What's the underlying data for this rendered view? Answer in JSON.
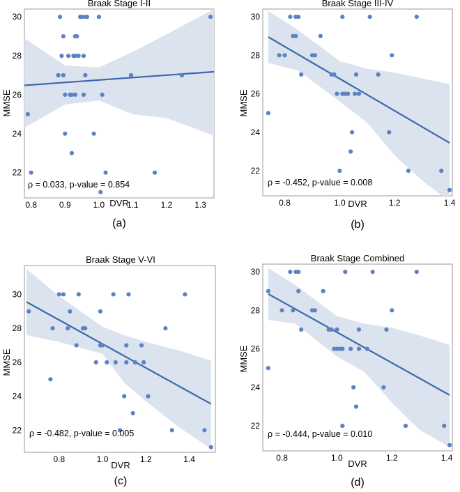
{
  "chart_data": [
    {
      "id": "a",
      "type": "scatter",
      "title": "Braak Stage I-II",
      "xlabel": "DVR",
      "ylabel": "MMSE",
      "xlim": [
        0.78,
        1.34
      ],
      "ylim": [
        20.7,
        30.4
      ],
      "xticks": [
        0.8,
        0.9,
        1.0,
        1.1,
        1.2,
        1.3
      ],
      "xtick_labels": [
        "0.8",
        "0.9",
        "1.0",
        "1.1",
        "1.2",
        "1.3"
      ],
      "yticks": [
        22,
        24,
        26,
        28,
        30
      ],
      "ytick_labels": [
        "22",
        "24",
        "26",
        "28",
        "30"
      ],
      "annotation": "ρ = 0.033, p-value = 0.854",
      "caption": "(a)",
      "points": [
        [
          0.79,
          25
        ],
        [
          0.8,
          22
        ],
        [
          0.88,
          27
        ],
        [
          0.885,
          30
        ],
        [
          0.89,
          28
        ],
        [
          0.895,
          29
        ],
        [
          0.895,
          27
        ],
        [
          0.9,
          26
        ],
        [
          0.9,
          24
        ],
        [
          0.91,
          28
        ],
        [
          0.915,
          26
        ],
        [
          0.92,
          26
        ],
        [
          0.92,
          23
        ],
        [
          0.925,
          28
        ],
        [
          0.93,
          29
        ],
        [
          0.93,
          28
        ],
        [
          0.93,
          26
        ],
        [
          0.935,
          29
        ],
        [
          0.94,
          28
        ],
        [
          0.945,
          30
        ],
        [
          0.95,
          30
        ],
        [
          0.955,
          28
        ],
        [
          0.955,
          26
        ],
        [
          0.96,
          27
        ],
        [
          0.96,
          30
        ],
        [
          0.965,
          30
        ],
        [
          0.985,
          24
        ],
        [
          1.0,
          30
        ],
        [
          1.005,
          21
        ],
        [
          1.01,
          26
        ],
        [
          1.02,
          22
        ],
        [
          1.095,
          27
        ],
        [
          1.165,
          22
        ],
        [
          1.245,
          27
        ],
        [
          1.33,
          30
        ]
      ],
      "fit_line": [
        [
          0.78,
          26.48
        ],
        [
          1.34,
          27.18
        ]
      ],
      "ci_upper": [
        [
          0.78,
          28.9
        ],
        [
          0.9,
          27.5
        ],
        [
          1.0,
          27.4
        ],
        [
          1.1,
          28.2
        ],
        [
          1.2,
          29.1
        ],
        [
          1.34,
          30.4
        ]
      ],
      "ci_lower": [
        [
          0.78,
          24.3
        ],
        [
          0.9,
          25.5
        ],
        [
          1.0,
          25.7
        ],
        [
          1.1,
          25.0
        ],
        [
          1.2,
          24.8
        ],
        [
          1.34,
          23.9
        ]
      ]
    },
    {
      "id": "b",
      "type": "scatter",
      "title": "Braak Stage III-IV",
      "xlabel": "DVR",
      "ylabel": "MMSE",
      "xlim": [
        0.72,
        1.41
      ],
      "ylim": [
        20.7,
        30.4
      ],
      "xticks": [
        0.8,
        1.0,
        1.2,
        1.4
      ],
      "xtick_labels": [
        "0.8",
        "1.0",
        "1.2",
        "1.4"
      ],
      "yticks": [
        22,
        24,
        26,
        28,
        30
      ],
      "ytick_labels": [
        "22",
        "24",
        "26",
        "28",
        "30"
      ],
      "annotation": "ρ = -0.452, p-value = 0.008",
      "caption": "(b)",
      "points": [
        [
          0.74,
          25
        ],
        [
          0.78,
          28
        ],
        [
          0.8,
          28
        ],
        [
          0.82,
          30
        ],
        [
          0.83,
          29
        ],
        [
          0.84,
          30
        ],
        [
          0.84,
          29
        ],
        [
          0.85,
          30
        ],
        [
          0.86,
          27
        ],
        [
          0.9,
          28
        ],
        [
          0.91,
          28
        ],
        [
          0.93,
          29
        ],
        [
          0.97,
          27
        ],
        [
          0.98,
          27
        ],
        [
          0.99,
          26
        ],
        [
          1.0,
          22
        ],
        [
          1.01,
          26
        ],
        [
          1.01,
          30
        ],
        [
          1.02,
          26
        ],
        [
          1.03,
          26
        ],
        [
          1.04,
          23
        ],
        [
          1.045,
          24
        ],
        [
          1.055,
          26
        ],
        [
          1.06,
          27
        ],
        [
          1.07,
          26
        ],
        [
          1.11,
          30
        ],
        [
          1.14,
          27
        ],
        [
          1.18,
          24
        ],
        [
          1.19,
          28
        ],
        [
          1.25,
          22
        ],
        [
          1.28,
          30
        ],
        [
          1.37,
          22
        ],
        [
          1.4,
          21
        ]
      ],
      "fit_line": [
        [
          0.74,
          28.95
        ],
        [
          1.4,
          23.45
        ]
      ],
      "ci_upper": [
        [
          0.74,
          30.3
        ],
        [
          0.85,
          29.3
        ],
        [
          1.0,
          27.7
        ],
        [
          1.1,
          27.3
        ],
        [
          1.2,
          27.1
        ],
        [
          1.3,
          26.8
        ],
        [
          1.4,
          26.5
        ]
      ],
      "ci_lower": [
        [
          0.74,
          27.6
        ],
        [
          0.85,
          27.2
        ],
        [
          1.0,
          25.6
        ],
        [
          1.1,
          24.5
        ],
        [
          1.2,
          22.8
        ],
        [
          1.3,
          21.5
        ],
        [
          1.4,
          20.4
        ]
      ]
    },
    {
      "id": "c",
      "type": "scatter",
      "title": "Braak Stage V-VI",
      "xlabel": "DVR",
      "ylabel": "MMSE",
      "xlim": [
        0.64,
        1.52
      ],
      "ylim": [
        20.7,
        31.7
      ],
      "xticks": [
        0.8,
        1.0,
        1.2,
        1.4
      ],
      "xtick_labels": [
        "0.8",
        "1.0",
        "1.2",
        "1.4"
      ],
      "yticks": [
        22,
        24,
        26,
        28,
        30
      ],
      "ytick_labels": [
        "22",
        "24",
        "26",
        "28",
        "30"
      ],
      "annotation": "ρ = -0.482, p-value = 0.005",
      "caption": "(c)",
      "points": [
        [
          0.66,
          29
        ],
        [
          0.76,
          25
        ],
        [
          0.77,
          28
        ],
        [
          0.8,
          30
        ],
        [
          0.82,
          30
        ],
        [
          0.84,
          28
        ],
        [
          0.85,
          29
        ],
        [
          0.88,
          27
        ],
        [
          0.89,
          30
        ],
        [
          0.91,
          28
        ],
        [
          0.92,
          28
        ],
        [
          0.97,
          26
        ],
        [
          0.99,
          29
        ],
        [
          0.99,
          27
        ],
        [
          1.0,
          27
        ],
        [
          1.02,
          26
        ],
        [
          1.05,
          30
        ],
        [
          1.06,
          26
        ],
        [
          1.08,
          22
        ],
        [
          1.1,
          24
        ],
        [
          1.11,
          27
        ],
        [
          1.11,
          26
        ],
        [
          1.12,
          30
        ],
        [
          1.14,
          23
        ],
        [
          1.15,
          26
        ],
        [
          1.18,
          27
        ],
        [
          1.19,
          26
        ],
        [
          1.21,
          24
        ],
        [
          1.29,
          28
        ],
        [
          1.32,
          22
        ],
        [
          1.38,
          30
        ],
        [
          1.47,
          22
        ],
        [
          1.5,
          21
        ]
      ],
      "fit_line": [
        [
          0.65,
          29.55
        ],
        [
          1.5,
          23.55
        ]
      ],
      "ci_upper": [
        [
          0.65,
          31.5
        ],
        [
          0.8,
          29.9
        ],
        [
          1.0,
          28.1
        ],
        [
          1.1,
          27.6
        ],
        [
          1.2,
          27.2
        ],
        [
          1.35,
          26.7
        ],
        [
          1.5,
          26.1
        ]
      ],
      "ci_lower": [
        [
          0.65,
          27.6
        ],
        [
          0.8,
          27.2
        ],
        [
          1.0,
          26.5
        ],
        [
          1.1,
          24.8
        ],
        [
          1.2,
          23.7
        ],
        [
          1.35,
          22.2
        ],
        [
          1.5,
          20.9
        ]
      ]
    },
    {
      "id": "d",
      "type": "scatter",
      "title": "Braak Stage Combined",
      "xlabel": "DVR",
      "ylabel": "MMSE",
      "xlim": [
        0.73,
        1.42
      ],
      "ylim": [
        20.7,
        30.4
      ],
      "xticks": [
        0.8,
        1.0,
        1.2,
        1.4
      ],
      "xtick_labels": [
        "0.8",
        "1.0",
        "1.2",
        "1.4"
      ],
      "yticks": [
        22,
        24,
        26,
        28,
        30
      ],
      "ytick_labels": [
        "22",
        "24",
        "26",
        "28",
        "30"
      ],
      "annotation": "ρ = -0.444, p-value = 0.010",
      "caption": "(d)",
      "points": [
        [
          0.75,
          29
        ],
        [
          0.75,
          25
        ],
        [
          0.8,
          28
        ],
        [
          0.83,
          30
        ],
        [
          0.84,
          28
        ],
        [
          0.85,
          30
        ],
        [
          0.86,
          29
        ],
        [
          0.86,
          30
        ],
        [
          0.87,
          27
        ],
        [
          0.91,
          28
        ],
        [
          0.92,
          28
        ],
        [
          0.95,
          29
        ],
        [
          0.97,
          27
        ],
        [
          0.98,
          27
        ],
        [
          0.99,
          26
        ],
        [
          1.0,
          26
        ],
        [
          1.0,
          27
        ],
        [
          1.01,
          26
        ],
        [
          1.02,
          26
        ],
        [
          1.02,
          22
        ],
        [
          1.03,
          30
        ],
        [
          1.05,
          26
        ],
        [
          1.06,
          24
        ],
        [
          1.07,
          23
        ],
        [
          1.08,
          27
        ],
        [
          1.08,
          26
        ],
        [
          1.11,
          26
        ],
        [
          1.13,
          30
        ],
        [
          1.17,
          24
        ],
        [
          1.18,
          27
        ],
        [
          1.2,
          28
        ],
        [
          1.25,
          22
        ],
        [
          1.29,
          30
        ],
        [
          1.39,
          22
        ],
        [
          1.41,
          21
        ]
      ],
      "fit_line": [
        [
          0.75,
          28.85
        ],
        [
          1.41,
          23.6
        ]
      ],
      "ci_upper": [
        [
          0.75,
          30.2
        ],
        [
          0.85,
          29.3
        ],
        [
          1.0,
          27.7
        ],
        [
          1.1,
          27.3
        ],
        [
          1.2,
          27.1
        ],
        [
          1.3,
          26.7
        ],
        [
          1.41,
          26.2
        ]
      ],
      "ci_lower": [
        [
          0.75,
          27.5
        ],
        [
          0.85,
          27.3
        ],
        [
          1.0,
          25.6
        ],
        [
          1.1,
          24.8
        ],
        [
          1.2,
          23.2
        ],
        [
          1.3,
          21.8
        ],
        [
          1.41,
          20.9
        ]
      ]
    }
  ],
  "colors": {
    "points": "#5b82c2",
    "line": "#3c66ad",
    "band": "#dbe3ef",
    "frame": "#9a9a9a"
  }
}
